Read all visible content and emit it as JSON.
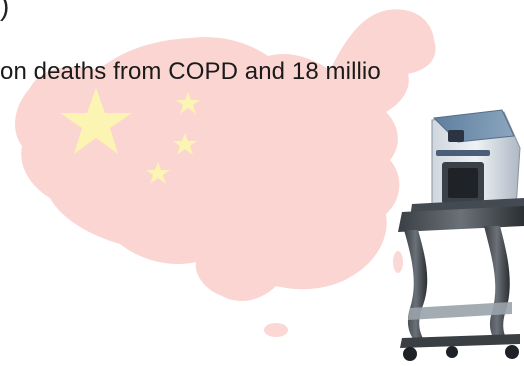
{
  "slide": {
    "top_fragment": ")",
    "headline": "on deaths from COPD and 18 millio"
  },
  "colors": {
    "map_fill": "#fbd3d0",
    "star_fill": "#fbf5b0",
    "text": "#1a1a1a"
  },
  "icons": {
    "background": "china-flag-map-icon",
    "device": "spirometry-device-on-cart-icon"
  }
}
